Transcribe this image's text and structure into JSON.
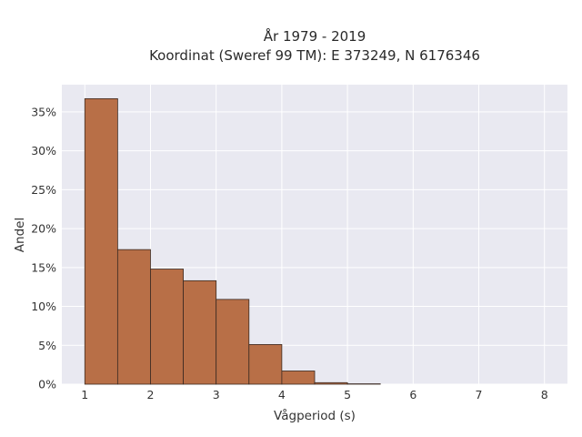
{
  "chart_data": {
    "type": "bar",
    "title_lines": [
      "År 1979 - 2019",
      "Koordinat (Sweref 99 TM): E 373249, N 6176346"
    ],
    "xlabel": "Vågperiod (s)",
    "ylabel": "Andel",
    "bin_edges": [
      1.0,
      1.5,
      2.0,
      2.5,
      3.0,
      3.5,
      4.0,
      4.5,
      5.0,
      5.5
    ],
    "values": [
      36.7,
      17.3,
      14.8,
      13.3,
      10.9,
      5.1,
      1.7,
      0.2,
      0.05
    ],
    "xlim": [
      0.65,
      8.35
    ],
    "ylim": [
      0,
      38.5
    ],
    "xticks": [
      1,
      2,
      3,
      4,
      5,
      6,
      7,
      8
    ],
    "xtick_labels": [
      "1",
      "2",
      "3",
      "4",
      "5",
      "6",
      "7",
      "8"
    ],
    "yticks": [
      0,
      5,
      10,
      15,
      20,
      25,
      30,
      35
    ],
    "ytick_labels": [
      "0%",
      "5%",
      "10%",
      "15%",
      "20%",
      "25%",
      "30%",
      "35%"
    ],
    "grid": true,
    "colors": {
      "bar_fill": "#b86f47",
      "bar_edge": "#3a2a22",
      "plot_bg": "#e9e9f1",
      "grid": "#ffffff"
    }
  }
}
